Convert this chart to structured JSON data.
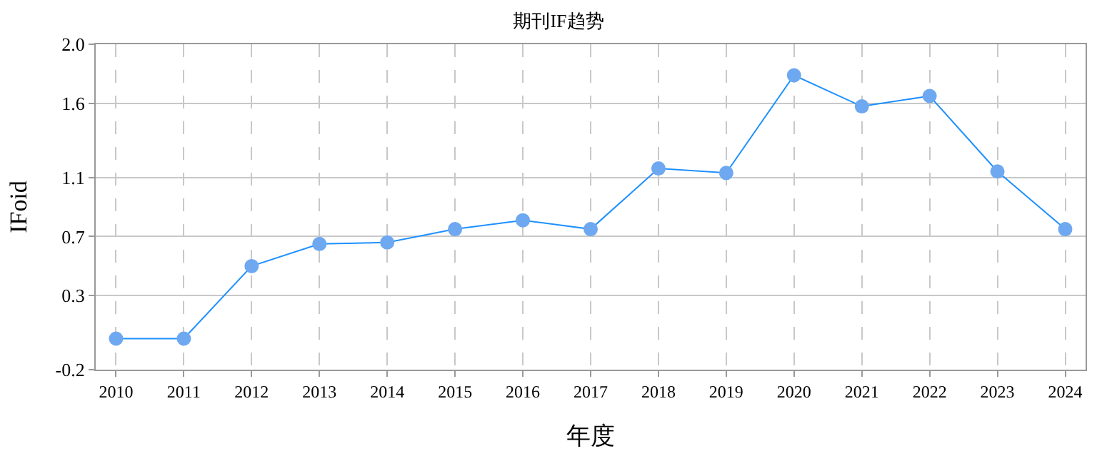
{
  "chart_data": {
    "type": "line",
    "title": "期刊IF趋势",
    "xlabel": "年度",
    "ylabel": "IFoid",
    "categories": [
      "2010",
      "2011",
      "2012",
      "2013",
      "2014",
      "2015",
      "2016",
      "2017",
      "2018",
      "2019",
      "2020",
      "2021",
      "2022",
      "2023",
      "2024"
    ],
    "series": [
      {
        "color": "#1e90ff",
        "values": [
          0.01,
          0.01,
          0.5,
          0.65,
          0.66,
          0.75,
          0.81,
          0.75,
          1.16,
          1.13,
          1.79,
          1.58,
          1.65,
          1.14,
          0.75
        ]
      }
    ],
    "ylim": [
      -0.2,
      2.0
    ],
    "yticks": [
      {
        "value": -0.2,
        "label": "-0.2"
      },
      0.3,
      0.7,
      1.1,
      1.6,
      {
        "value": 2.0,
        "label": "2.0"
      }
    ],
    "grid": true,
    "marker": "circle",
    "line_style": "solid"
  }
}
